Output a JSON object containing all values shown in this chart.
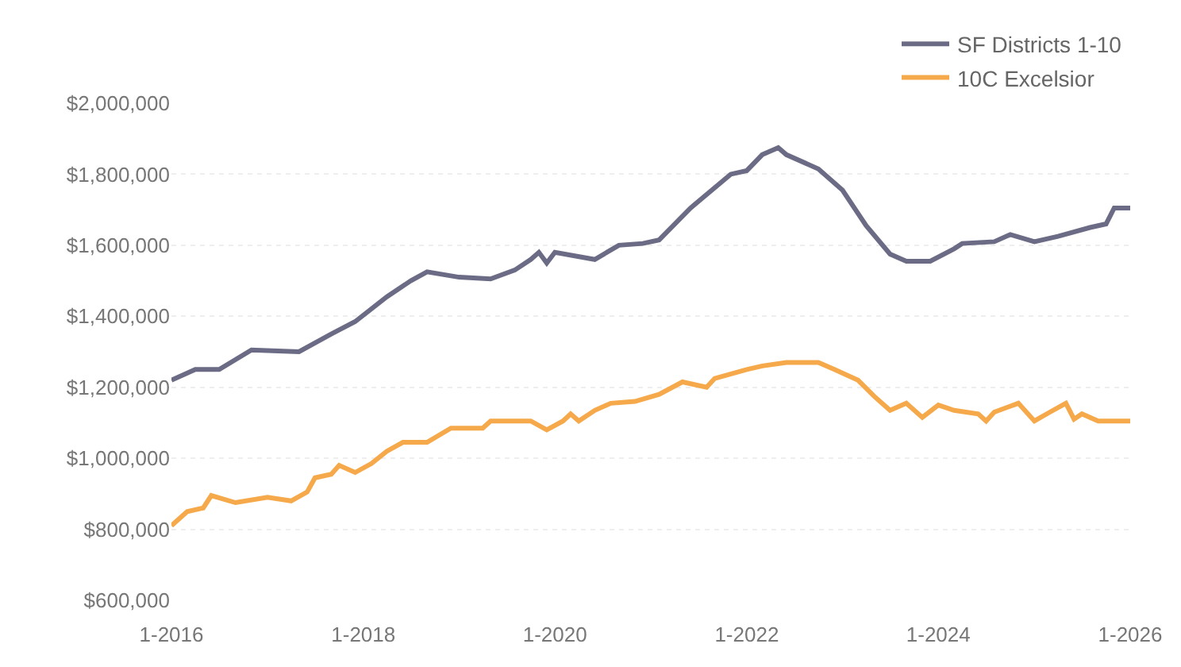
{
  "chart_data": {
    "type": "line",
    "series": [
      {
        "name": "SF Districts 1-10",
        "color": "#6b6b85",
        "x": [
          "2016-01",
          "2016-04",
          "2016-07",
          "2016-11",
          "2017-05",
          "2017-09",
          "2017-12",
          "2018-04",
          "2018-07",
          "2018-09",
          "2019-01",
          "2019-05",
          "2019-08",
          "2019-10",
          "2019-11",
          "2019-12",
          "2020-01",
          "2020-06",
          "2020-09",
          "2020-12",
          "2021-02",
          "2021-06",
          "2021-11",
          "2022-01",
          "2022-03",
          "2022-05",
          "2022-06",
          "2022-10",
          "2023-01",
          "2023-04",
          "2023-07",
          "2023-09",
          "2023-12",
          "2024-03",
          "2024-04",
          "2024-08",
          "2024-10",
          "2025-01",
          "2025-04",
          "2025-08",
          "2025-10",
          "2025-11",
          "2026-01"
        ],
        "values": [
          1220000,
          1250000,
          1250000,
          1305000,
          1300000,
          1350000,
          1385000,
          1455000,
          1500000,
          1525000,
          1510000,
          1505000,
          1530000,
          1560000,
          1580000,
          1550000,
          1580000,
          1560000,
          1600000,
          1605000,
          1615000,
          1705000,
          1800000,
          1810000,
          1855000,
          1875000,
          1855000,
          1815000,
          1755000,
          1655000,
          1575000,
          1555000,
          1555000,
          1590000,
          1605000,
          1610000,
          1630000,
          1610000,
          1625000,
          1650000,
          1660000,
          1705000,
          1705000
        ]
      },
      {
        "name": "10C Excelsior",
        "color": "#f5a94a",
        "x": [
          "2016-01",
          "2016-03",
          "2016-05",
          "2016-06",
          "2016-09",
          "2017-01",
          "2017-04",
          "2017-06",
          "2017-07",
          "2017-09",
          "2017-10",
          "2017-12",
          "2018-02",
          "2018-04",
          "2018-06",
          "2018-09",
          "2018-12",
          "2019-01",
          "2019-04",
          "2019-05",
          "2019-08",
          "2019-10",
          "2019-12",
          "2020-02",
          "2020-03",
          "2020-04",
          "2020-06",
          "2020-08",
          "2020-11",
          "2021-02",
          "2021-05",
          "2021-08",
          "2021-09",
          "2022-01",
          "2022-03",
          "2022-06",
          "2022-10",
          "2022-12",
          "2023-03",
          "2023-05",
          "2023-07",
          "2023-09",
          "2023-11",
          "2024-01",
          "2024-03",
          "2024-06",
          "2024-07",
          "2024-08",
          "2024-11",
          "2025-01",
          "2025-03",
          "2025-05",
          "2025-06",
          "2025-07",
          "2025-09",
          "2026-01"
        ],
        "values": [
          810000,
          850000,
          860000,
          895000,
          875000,
          890000,
          880000,
          905000,
          945000,
          955000,
          980000,
          960000,
          985000,
          1020000,
          1045000,
          1045000,
          1085000,
          1085000,
          1085000,
          1105000,
          1105000,
          1105000,
          1080000,
          1105000,
          1125000,
          1105000,
          1135000,
          1155000,
          1160000,
          1180000,
          1215000,
          1200000,
          1225000,
          1250000,
          1260000,
          1270000,
          1270000,
          1250000,
          1220000,
          1175000,
          1135000,
          1155000,
          1115000,
          1150000,
          1135000,
          1125000,
          1105000,
          1130000,
          1155000,
          1105000,
          1130000,
          1155000,
          1110000,
          1125000,
          1105000,
          1105000
        ]
      }
    ],
    "xlim": [
      "2016-01",
      "2026-01"
    ],
    "xticks": [
      {
        "value": "2016-01",
        "label": "1-2016"
      },
      {
        "value": "2018-01",
        "label": "1-2018"
      },
      {
        "value": "2020-01",
        "label": "1-2020"
      },
      {
        "value": "2022-01",
        "label": "1-2022"
      },
      {
        "value": "2024-01",
        "label": "1-2024"
      },
      {
        "value": "2026-01",
        "label": "1-2026"
      }
    ],
    "ylim": [
      600000,
      2000000
    ],
    "yticks": [
      {
        "value": 600000,
        "label": "$600,000"
      },
      {
        "value": 800000,
        "label": "$800,000"
      },
      {
        "value": 1000000,
        "label": "$1,000,000"
      },
      {
        "value": 1200000,
        "label": "$1,200,000"
      },
      {
        "value": 1400000,
        "label": "$1,400,000"
      },
      {
        "value": 1600000,
        "label": "$1,600,000"
      },
      {
        "value": 1800000,
        "label": "$1,800,000"
      },
      {
        "value": 2000000,
        "label": "$2,000,000"
      }
    ],
    "grid": "y",
    "legend": "top right",
    "marker": "none",
    "line_style": "solid"
  }
}
